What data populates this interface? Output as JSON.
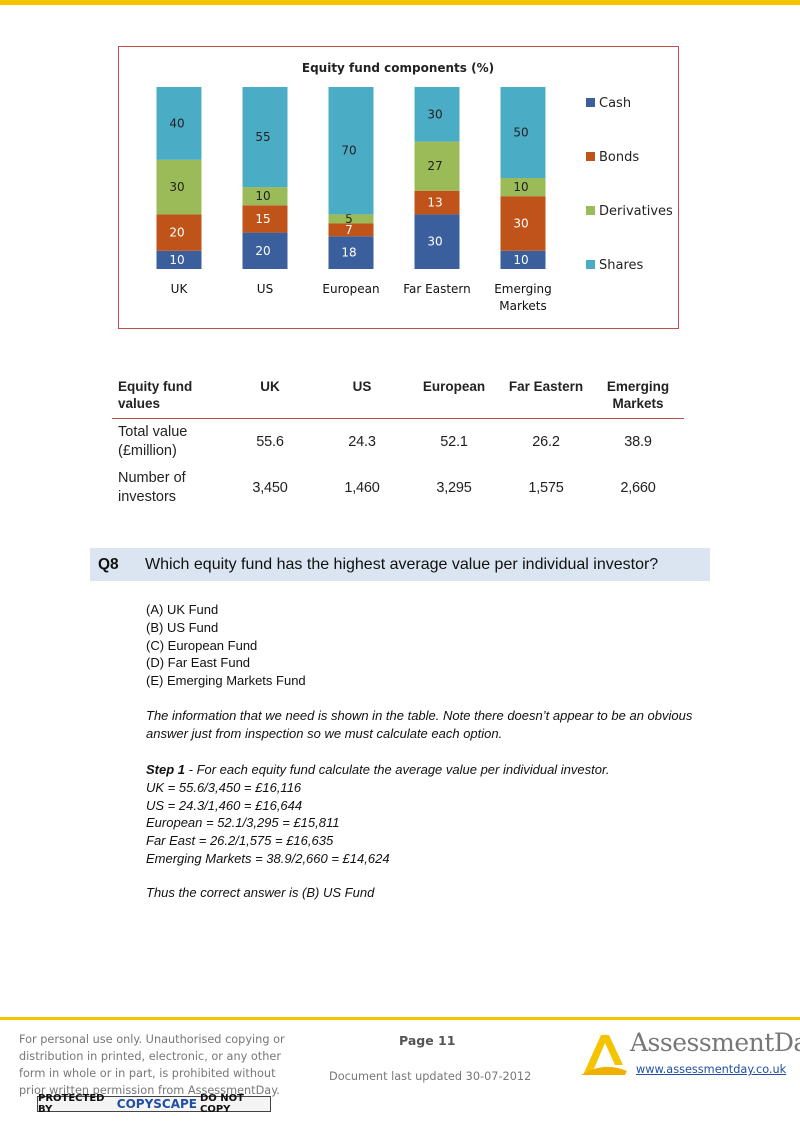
{
  "colors": {
    "accent": "#f5c400",
    "cash": "#3a5f9c",
    "bonds": "#c0531a",
    "derivatives": "#9bbb59",
    "shares": "#4bacc6",
    "chart_border": "#c0504d",
    "question_bg": "#dbe5f1"
  },
  "chart_data": {
    "type": "bar",
    "stacked": true,
    "title": "Equity fund components (%)",
    "categories": [
      "UK",
      "US",
      "European",
      "Far Eastern",
      "Emerging Markets"
    ],
    "series": [
      {
        "name": "Cash",
        "values": [
          10,
          20,
          18,
          30,
          10
        ]
      },
      {
        "name": "Bonds",
        "values": [
          20,
          15,
          7,
          13,
          30
        ]
      },
      {
        "name": "Derivatives",
        "values": [
          30,
          10,
          5,
          27,
          10
        ]
      },
      {
        "name": "Shares",
        "values": [
          40,
          55,
          70,
          30,
          50
        ]
      }
    ],
    "ylim": [
      0,
      100
    ],
    "legend_position": "right",
    "grid": false
  },
  "values_table": {
    "headers": [
      "Equity fund values",
      "UK",
      "US",
      "European",
      "Far Eastern",
      "Emerging Markets"
    ],
    "rows": [
      {
        "label": "Total value (£million)",
        "values": [
          "55.6",
          "24.3",
          "52.1",
          "26.2",
          "38.9"
        ]
      },
      {
        "label": "Number of investors",
        "values": [
          "3,450",
          "1,460",
          "3,295",
          "1,575",
          "2,660"
        ]
      }
    ]
  },
  "question": {
    "number": "Q8",
    "text": "Which equity fund has the highest average value per individual investor?",
    "options": [
      "(A) UK Fund",
      "(B) US Fund",
      "(C) European Fund",
      "(D) Far East Fund",
      "(E) Emerging Markets Fund"
    ],
    "explanation": "The information that we need is shown in the table. Note there doesn’t appear to be an obvious answer just from inspection so we must calculate each option.",
    "step_title": "Step 1",
    "step_text": " - For each equity fund calculate the average value per individual investor.",
    "calculations": [
      "UK = 55.6/3,450 = £16,116",
      "US = 24.3/1,460 = £16,644",
      "European = 52.1/3,295 = £15,811",
      "Far East = 26.2/1,575 = £16,635",
      "Emerging Markets = 38.9/2,660 = £14,624"
    ],
    "answer": "Thus the correct answer is (B) US Fund"
  },
  "footer": {
    "note": "For personal use only. Unauthorised copying or distribution in printed, electronic, or any other form in whole or in part, is prohibited without prior written permission from AssessmentDay.",
    "copyscape_pre": "PROTECTED BY",
    "copyscape_brand": "COPYSCAPE",
    "copyscape_post": "DO NOT COPY",
    "page": "Page 11",
    "updated": "Document last updated 30-07-2012",
    "brand": "AssessmentDay",
    "url": "www.assessmentday.co.uk"
  }
}
